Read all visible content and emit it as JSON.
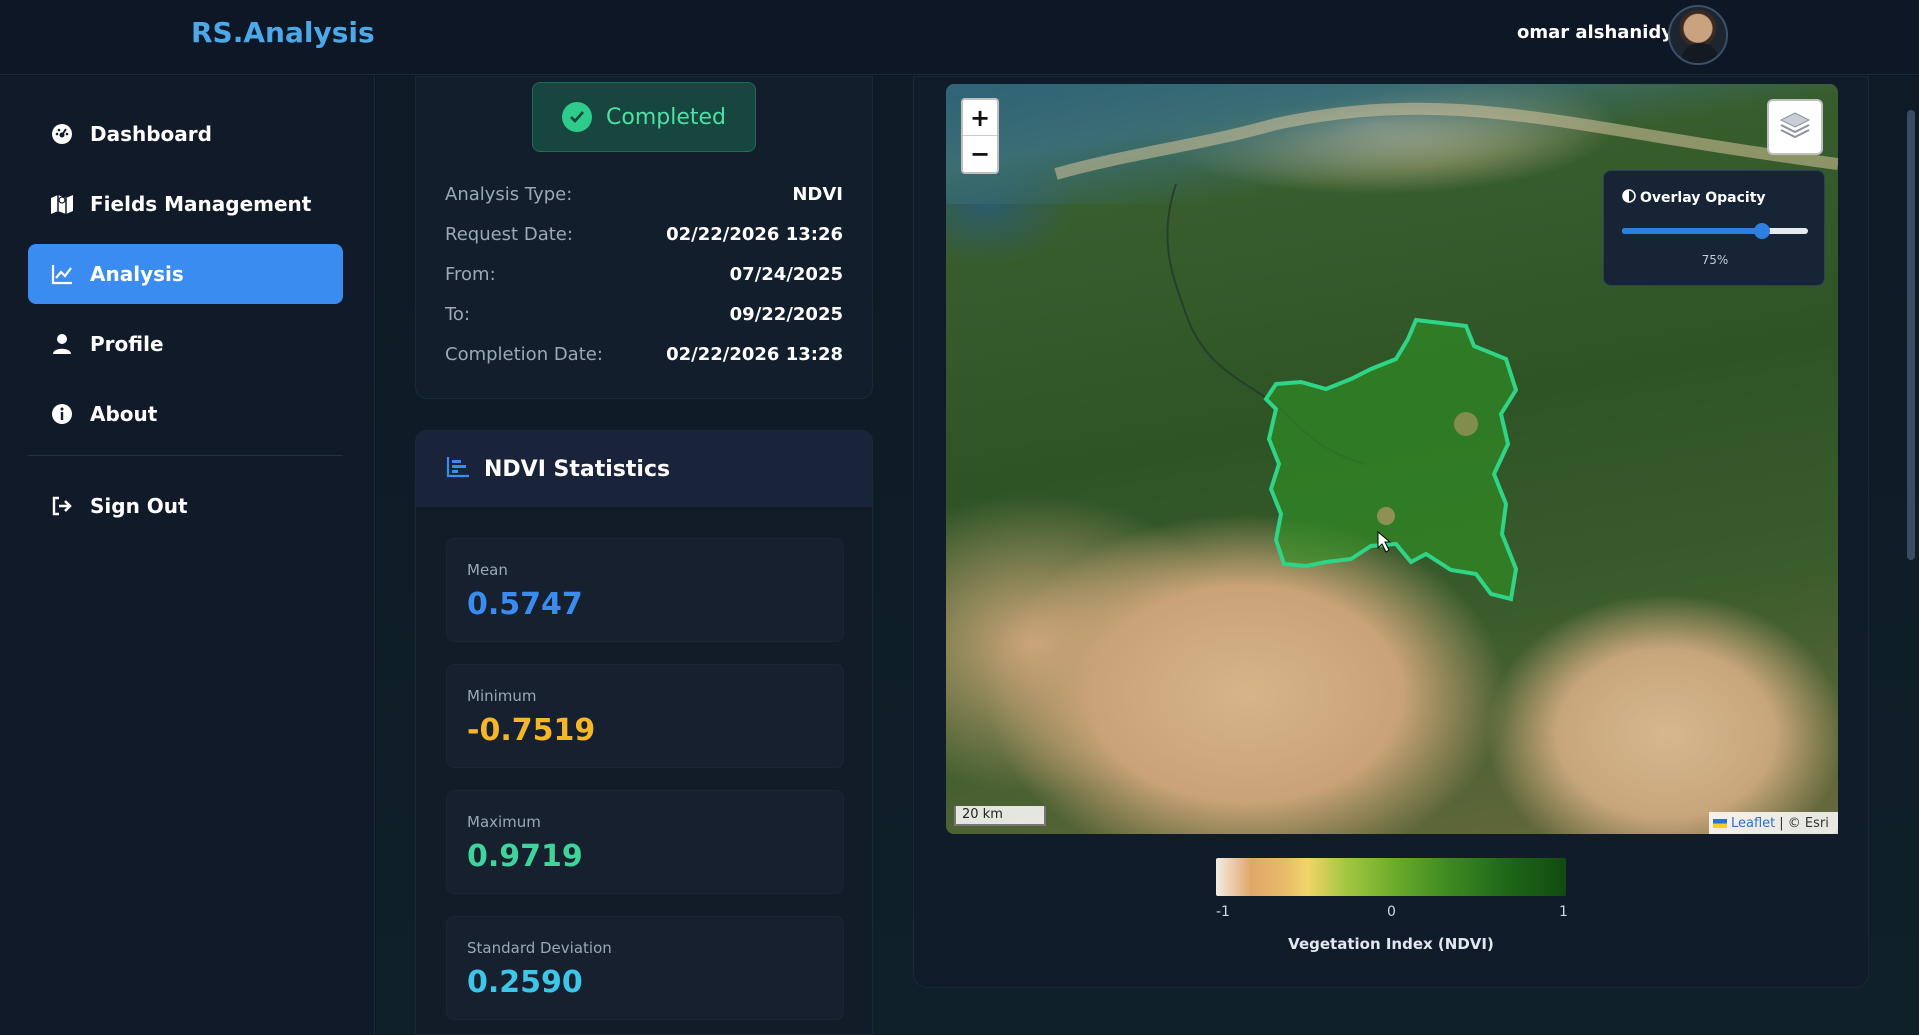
{
  "header": {
    "brand": "RS.Analysis",
    "user_name": "omar alshanidy"
  },
  "sidebar": {
    "items": [
      {
        "label": "Dashboard",
        "icon": "gauge-icon"
      },
      {
        "label": "Fields Management",
        "icon": "map-icon"
      },
      {
        "label": "Analysis",
        "icon": "chart-line-icon",
        "active": true
      },
      {
        "label": "Profile",
        "icon": "user-icon"
      },
      {
        "label": "About",
        "icon": "info-icon"
      },
      {
        "label": "Sign Out",
        "icon": "sign-out-icon"
      }
    ]
  },
  "analysis": {
    "status": "Completed",
    "rows": [
      {
        "label": "Analysis Type:",
        "value": "NDVI"
      },
      {
        "label": "Request Date:",
        "value": "02/22/2026 13:26"
      },
      {
        "label": "From:",
        "value": "07/24/2025"
      },
      {
        "label": "To:",
        "value": "09/22/2025"
      },
      {
        "label": "Completion Date:",
        "value": "02/22/2026 13:28"
      }
    ]
  },
  "stats": {
    "title": "NDVI Statistics",
    "items": [
      {
        "label": "Mean",
        "value": "0.5747",
        "color": "#3b8cf0"
      },
      {
        "label": "Minimum",
        "value": "-0.7519",
        "color": "#f5b62a"
      },
      {
        "label": "Maximum",
        "value": "0.9719",
        "color": "#3ed49a"
      },
      {
        "label": "Standard Deviation",
        "value": "0.2590",
        "color": "#3ec6e8"
      }
    ]
  },
  "map": {
    "zoom_in": "+",
    "zoom_out": "−",
    "opacity_title": "Overlay Opacity",
    "opacity_value": "75%",
    "opacity_fraction": 0.75,
    "scale_label": "20 km",
    "attribution_link": "Leaflet",
    "attribution_rest": "| © Esri",
    "field_outline_color": "#2fd487"
  },
  "legend": {
    "title": "Vegetation Index (NDVI)",
    "min": "-1",
    "mid": "0",
    "max": "1"
  }
}
